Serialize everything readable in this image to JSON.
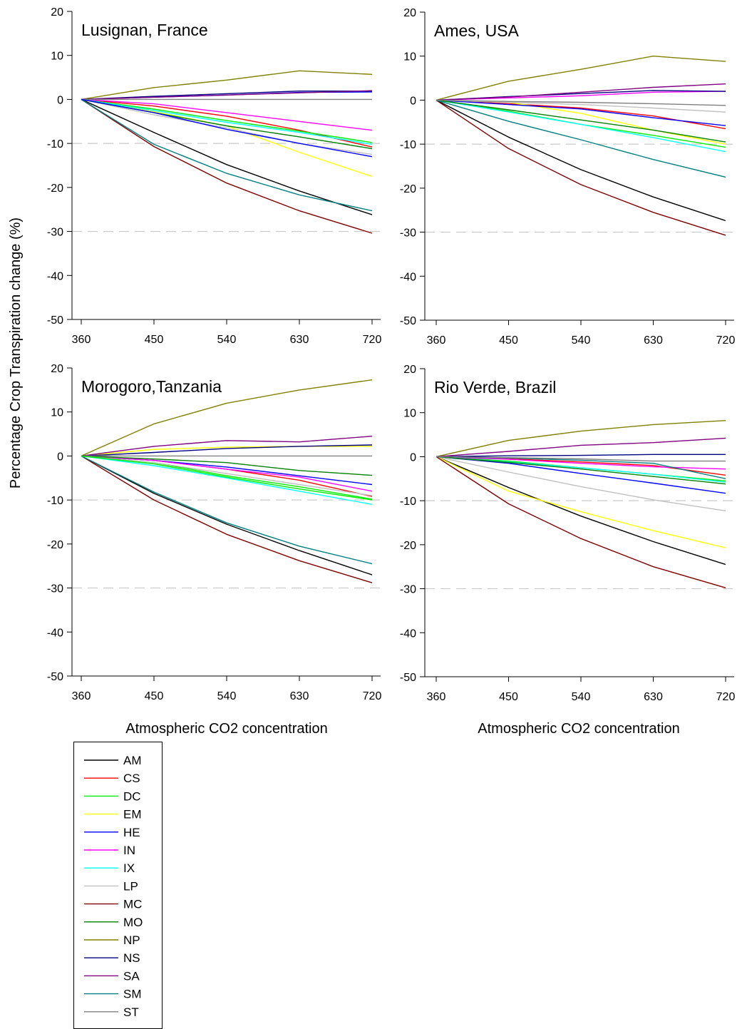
{
  "figure": {
    "ylabel": "Percentage Crop Transpiration change (%)",
    "xlabel": "Atmospheric CO2 concentration"
  },
  "legend": [
    {
      "name": "AM",
      "color": "#000000"
    },
    {
      "name": "CS",
      "color": "#ff0000"
    },
    {
      "name": "DC",
      "color": "#00ee00"
    },
    {
      "name": "EM",
      "color": "#ffff00"
    },
    {
      "name": "HE",
      "color": "#0000ff"
    },
    {
      "name": "IN",
      "color": "#ff00ff"
    },
    {
      "name": "IX",
      "color": "#00ffff"
    },
    {
      "name": "LP",
      "color": "#c0c0c0"
    },
    {
      "name": "MC",
      "color": "#800000"
    },
    {
      "name": "MO",
      "color": "#008000"
    },
    {
      "name": "NP",
      "color": "#808000"
    },
    {
      "name": "NS",
      "color": "#000080"
    },
    {
      "name": "SA",
      "color": "#800080"
    },
    {
      "name": "SM",
      "color": "#008080"
    },
    {
      "name": "ST",
      "color": "#808080"
    }
  ],
  "chart_data": [
    {
      "type": "line",
      "title": "Lusignan, France",
      "x": [
        360,
        450,
        540,
        630,
        720
      ],
      "xticks": [
        "360",
        "450",
        "540",
        "630",
        "720"
      ],
      "ylim": [
        -50,
        20
      ],
      "yticks": [
        "20",
        "10",
        "0",
        "-10",
        "-20",
        "-30",
        "-40",
        "-50"
      ],
      "reference_lines": [
        -10,
        -30
      ],
      "series": [
        {
          "name": "AM",
          "values": [
            0,
            -7.5,
            -14.8,
            -20.8,
            -26.2
          ]
        },
        {
          "name": "CS",
          "values": [
            0,
            -1.5,
            -3.8,
            -7.0,
            -10.8
          ]
        },
        {
          "name": "DC",
          "values": [
            0,
            -2.2,
            -4.8,
            -7.2,
            -9.8
          ]
        },
        {
          "name": "EM",
          "values": [
            0,
            -2.8,
            -6.0,
            -12.0,
            -17.5
          ]
        },
        {
          "name": "HE",
          "values": [
            0,
            0.5,
            1.0,
            1.6,
            1.7
          ]
        },
        {
          "name": "IN",
          "values": [
            0,
            -1.0,
            -3.0,
            -5.0,
            -7.0
          ]
        },
        {
          "name": "IX",
          "values": [
            0,
            -2.5,
            -5.2,
            -7.5,
            -10.2
          ]
        },
        {
          "name": "LP",
          "values": [
            0,
            -3.5,
            -6.5,
            -10.0,
            -12.5
          ]
        },
        {
          "name": "MC",
          "values": [
            0,
            -10.7,
            -19.0,
            -25.3,
            -30.4
          ]
        },
        {
          "name": "MO",
          "values": [
            0,
            -3.0,
            -6.0,
            -8.5,
            -11.2
          ]
        },
        {
          "name": "NP",
          "values": [
            0,
            2.7,
            4.4,
            6.5,
            5.7
          ]
        },
        {
          "name": "NS",
          "values": [
            0,
            0.7,
            1.3,
            1.9,
            1.9
          ]
        },
        {
          "name": "SA",
          "values": [
            0,
            0.5,
            1.0,
            1.5,
            2.0
          ]
        },
        {
          "name": "SM",
          "values": [
            0,
            -10.2,
            -16.8,
            -21.7,
            -25.3
          ]
        },
        {
          "name": "ST",
          "values": [
            0,
            0,
            0,
            0,
            0
          ]
        },
        {
          "name": "HE",
          "values": [
            0,
            -3.0,
            -6.8,
            -10.0,
            -13.0
          ]
        }
      ]
    },
    {
      "type": "line",
      "title": "Ames, USA",
      "x": [
        360,
        450,
        540,
        630,
        720
      ],
      "xticks": [
        "360",
        "450",
        "540",
        "630",
        "720"
      ],
      "ylim": [
        -50,
        20
      ],
      "yticks": [
        "20",
        "10",
        "0",
        "-10",
        "-20",
        "-30",
        "-40",
        "-50"
      ],
      "reference_lines": [
        -10,
        -30
      ],
      "series": [
        {
          "name": "AM",
          "values": [
            0,
            -8.4,
            -15.8,
            -22.0,
            -27.4
          ]
        },
        {
          "name": "CS",
          "values": [
            0,
            -0.8,
            -1.8,
            -3.6,
            -6.5
          ]
        },
        {
          "name": "DC",
          "values": [
            0,
            -2.5,
            -5.5,
            -8.0,
            -10.7
          ]
        },
        {
          "name": "EM",
          "values": [
            0,
            -0.5,
            -3.0,
            -6.8,
            -10.0
          ]
        },
        {
          "name": "HE",
          "values": [
            0,
            -1.0,
            -2.0,
            -4.0,
            -5.8
          ]
        },
        {
          "name": "IN",
          "values": [
            0,
            0.5,
            1.0,
            1.8,
            2.0
          ]
        },
        {
          "name": "IX",
          "values": [
            0,
            -2.7,
            -5.5,
            -8.5,
            -11.7
          ]
        },
        {
          "name": "LP",
          "values": [
            0,
            -0.5,
            -1.0,
            -1.8,
            -2.7
          ]
        },
        {
          "name": "MC",
          "values": [
            0,
            -11.0,
            -19.2,
            -25.5,
            -30.7
          ]
        },
        {
          "name": "MO",
          "values": [
            0,
            -2.2,
            -4.5,
            -6.8,
            -9.5
          ]
        },
        {
          "name": "NP",
          "values": [
            0,
            4.3,
            7.0,
            10.0,
            8.8
          ]
        },
        {
          "name": "NS",
          "values": [
            0,
            0.8,
            1.5,
            2.2,
            2.0
          ]
        },
        {
          "name": "SA",
          "values": [
            0,
            0.7,
            1.8,
            2.9,
            3.7
          ]
        },
        {
          "name": "SM",
          "values": [
            0,
            -4.8,
            -9.0,
            -13.5,
            -17.5
          ]
        },
        {
          "name": "ST",
          "values": [
            0,
            -0.3,
            -0.5,
            -0.8,
            -1.2
          ]
        }
      ]
    },
    {
      "type": "line",
      "title": "Morogoro,Tanzania",
      "x": [
        360,
        450,
        540,
        630,
        720
      ],
      "xticks": [
        "360",
        "450",
        "540",
        "630",
        "720"
      ],
      "ylim": [
        -50,
        20
      ],
      "yticks": [
        "20",
        "10",
        "0",
        "-10",
        "-20",
        "-30",
        "-40",
        "-50"
      ],
      "reference_lines": [
        -10,
        -30
      ],
      "series": [
        {
          "name": "AM",
          "values": [
            0,
            -8.5,
            -15.5,
            -21.5,
            -27.0
          ]
        },
        {
          "name": "CS",
          "values": [
            0,
            -1.0,
            -3.0,
            -5.5,
            -9.2
          ]
        },
        {
          "name": "DC",
          "values": [
            0,
            -1.5,
            -4.5,
            -7.0,
            -9.8
          ]
        },
        {
          "name": "EM",
          "values": [
            0,
            1.5,
            2.0,
            2.2,
            2.2
          ]
        },
        {
          "name": "HE",
          "values": [
            0,
            -1.0,
            -2.5,
            -4.5,
            -6.5
          ]
        },
        {
          "name": "IN",
          "values": [
            0,
            -1.0,
            -3.0,
            -4.8,
            -8.0
          ]
        },
        {
          "name": "IX",
          "values": [
            0,
            -2.2,
            -5.0,
            -8.0,
            -11.0
          ]
        },
        {
          "name": "LP",
          "values": [
            0,
            -1.5,
            -4.0,
            -6.5,
            -9.0
          ]
        },
        {
          "name": "MC",
          "values": [
            0,
            -10.0,
            -17.8,
            -23.8,
            -28.8
          ]
        },
        {
          "name": "MO",
          "values": [
            0,
            -0.7,
            -1.5,
            -3.3,
            -4.4
          ]
        },
        {
          "name": "NP",
          "values": [
            0,
            7.3,
            12.0,
            15.0,
            17.3
          ]
        },
        {
          "name": "NS",
          "values": [
            0,
            0.8,
            1.7,
            2.2,
            2.5
          ]
        },
        {
          "name": "SA",
          "values": [
            0,
            2.2,
            3.5,
            3.2,
            4.5
          ]
        },
        {
          "name": "SM",
          "values": [
            0,
            -8.2,
            -15.2,
            -20.5,
            -24.5
          ]
        },
        {
          "name": "ST",
          "values": [
            0,
            0,
            0,
            0,
            0
          ]
        },
        {
          "name": "DC",
          "values": [
            0,
            -1.8,
            -4.8,
            -7.5,
            -10.0
          ]
        }
      ]
    },
    {
      "type": "line",
      "title": "Rio Verde, Brazil",
      "x": [
        360,
        450,
        540,
        630,
        720
      ],
      "xticks": [
        "360",
        "450",
        "540",
        "630",
        "720"
      ],
      "ylim": [
        -50,
        20
      ],
      "yticks": [
        "20",
        "10",
        "0",
        "-10",
        "-20",
        "-30",
        "-40",
        "-50"
      ],
      "reference_lines": [
        -10,
        -30
      ],
      "series": [
        {
          "name": "AM",
          "values": [
            0,
            -7.0,
            -13.5,
            -19.3,
            -24.5
          ]
        },
        {
          "name": "CS",
          "values": [
            0,
            -0.5,
            -1.2,
            -2.0,
            -4.2
          ]
        },
        {
          "name": "DC",
          "values": [
            0,
            -1.0,
            -2.5,
            -4.0,
            -5.5
          ]
        },
        {
          "name": "EM",
          "values": [
            0,
            -7.8,
            -12.5,
            -16.8,
            -20.7
          ]
        },
        {
          "name": "HE",
          "values": [
            0,
            -1.5,
            -3.8,
            -6.0,
            -8.3
          ]
        },
        {
          "name": "IN",
          "values": [
            0,
            -0.6,
            -1.5,
            -2.3,
            -2.8
          ]
        },
        {
          "name": "IX",
          "values": [
            0,
            -1.2,
            -2.5,
            -4.0,
            -5.8
          ]
        },
        {
          "name": "LP",
          "values": [
            0,
            -3.5,
            -6.8,
            -9.8,
            -12.3
          ]
        },
        {
          "name": "MC",
          "values": [
            0,
            -10.7,
            -18.6,
            -25.0,
            -29.8
          ]
        },
        {
          "name": "MO",
          "values": [
            0,
            -1.3,
            -2.8,
            -4.5,
            -6.2
          ]
        },
        {
          "name": "NP",
          "values": [
            0,
            3.7,
            5.8,
            7.3,
            8.2
          ]
        },
        {
          "name": "NS",
          "values": [
            0,
            0.2,
            0.3,
            0.5,
            0.5
          ]
        },
        {
          "name": "SA",
          "values": [
            0,
            1.2,
            2.6,
            3.2,
            4.2
          ]
        },
        {
          "name": "SM",
          "values": [
            0,
            -0.3,
            -0.8,
            -1.5,
            -5.0
          ]
        },
        {
          "name": "ST",
          "values": [
            0,
            -0.2,
            -0.5,
            -1.0,
            -1.0
          ]
        }
      ]
    }
  ]
}
